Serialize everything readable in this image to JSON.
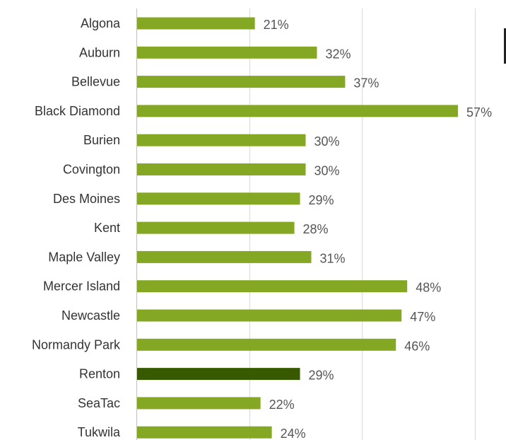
{
  "chart_data": {
    "type": "bar",
    "orientation": "horizontal",
    "categories": [
      "Algona",
      "Auburn",
      "Bellevue",
      "Black Diamond",
      "Burien",
      "Covington",
      "Des Moines",
      "Kent",
      "Maple Valley",
      "Mercer Island",
      "Newcastle",
      "Normandy Park",
      "Renton",
      "SeaTac",
      "Tukwila"
    ],
    "values": [
      21,
      32,
      37,
      57,
      30,
      30,
      29,
      28,
      31,
      48,
      47,
      46,
      29,
      22,
      24
    ],
    "value_labels": [
      "21%",
      "32%",
      "37%",
      "57%",
      "30%",
      "30%",
      "29%",
      "28%",
      "31%",
      "48%",
      "47%",
      "46%",
      "29%",
      "22%",
      "24%"
    ],
    "highlight_category": "Renton",
    "xlim": [
      0,
      60
    ],
    "grid": true,
    "title": "",
    "xlabel": "",
    "ylabel": "",
    "colors": {
      "bar": "#84a824",
      "highlight": "#375a00",
      "grid": "#d9d9d9"
    }
  }
}
